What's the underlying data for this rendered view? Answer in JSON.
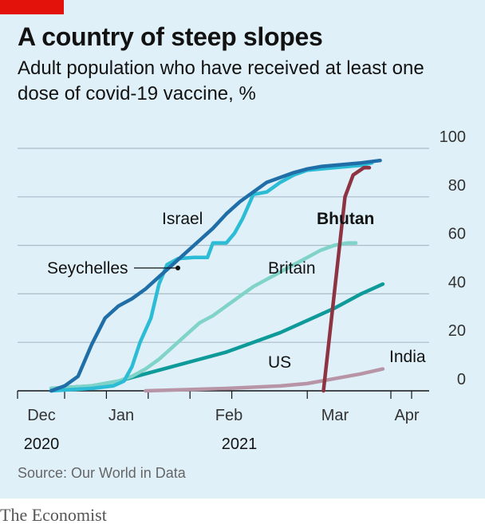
{
  "title": "A country of steep slopes",
  "subtitle": "Adult population who have received at least one dose of covid-19 vaccine, %",
  "source": "Source: Our World in Data",
  "brand": "The Economist",
  "colors": {
    "background": "#dff0f8",
    "israel": "#1f6ea8",
    "seychelles": "#2cbcd6",
    "britain": "#7fd3c8",
    "us": "#0f9a9a",
    "bhutan": "#8e3342",
    "india": "#b895a6",
    "brand_red": "#e3120b"
  },
  "chart_data": {
    "type": "line",
    "x_unit": "days since 2020-12-01",
    "xlabel": "",
    "ylabel": "",
    "ylim": [
      0,
      100
    ],
    "y_ticks": [
      0,
      20,
      40,
      60,
      80,
      100
    ],
    "y_tick_labels": [
      "0",
      "20",
      "40",
      "60",
      "80",
      "100"
    ],
    "grid": true,
    "y_axis_side": "right",
    "x_ticks": [
      {
        "label": "Dec",
        "day": 0
      },
      {
        "label": "Jan",
        "day": 31
      },
      {
        "label": "Feb",
        "day": 62
      },
      {
        "label": "Mar",
        "day": 90
      },
      {
        "label": "Apr",
        "day": 121
      }
    ],
    "year_labels": [
      {
        "label": "2020",
        "day": 0
      },
      {
        "label": "2021",
        "day": 62
      }
    ],
    "series": [
      {
        "name": "Israel",
        "key": "israel",
        "bold": false,
        "label_at": {
          "day": 35,
          "value": 72,
          "anchor": "start"
        },
        "points": [
          [
            -5,
            0
          ],
          [
            0,
            2
          ],
          [
            5,
            6
          ],
          [
            10,
            19
          ],
          [
            15,
            30
          ],
          [
            20,
            35
          ],
          [
            25,
            38
          ],
          [
            30,
            42
          ],
          [
            35,
            47
          ],
          [
            40,
            52
          ],
          [
            45,
            57
          ],
          [
            50,
            62
          ],
          [
            55,
            67
          ],
          [
            60,
            73
          ],
          [
            65,
            78
          ],
          [
            70,
            82
          ],
          [
            75,
            86
          ],
          [
            80,
            88
          ],
          [
            85,
            90
          ],
          [
            90,
            91.5
          ],
          [
            95,
            92.5
          ],
          [
            100,
            93
          ],
          [
            110,
            94
          ],
          [
            117,
            95
          ]
        ]
      },
      {
        "name": "Seychelles",
        "key": "seychelles",
        "bold": false,
        "label_at": {
          "day": -16,
          "value": 51,
          "anchor": "start"
        },
        "pointer": {
          "from_day": 21,
          "from_value": 51,
          "to_day": 27,
          "to_value": 51
        },
        "points": [
          [
            -5,
            0
          ],
          [
            10,
            1
          ],
          [
            18,
            2
          ],
          [
            22,
            4
          ],
          [
            25,
            10
          ],
          [
            28,
            20
          ],
          [
            32,
            30
          ],
          [
            35,
            44
          ],
          [
            38,
            52
          ],
          [
            42,
            54.5
          ],
          [
            48,
            55
          ],
          [
            53,
            55
          ],
          [
            55,
            61
          ],
          [
            60,
            61
          ],
          [
            63,
            65
          ],
          [
            66,
            71
          ],
          [
            70,
            81
          ],
          [
            75,
            82
          ],
          [
            80,
            86
          ],
          [
            85,
            89
          ],
          [
            90,
            91
          ],
          [
            100,
            92
          ],
          [
            110,
            93
          ],
          [
            114,
            94
          ]
        ]
      },
      {
        "name": "Britain",
        "key": "britain",
        "bold": false,
        "label_at": {
          "day": 69,
          "value": 49,
          "anchor": "start"
        },
        "points": [
          [
            -5,
            1
          ],
          [
            10,
            2
          ],
          [
            20,
            4
          ],
          [
            25,
            6
          ],
          [
            30,
            9
          ],
          [
            35,
            13
          ],
          [
            40,
            18
          ],
          [
            45,
            23
          ],
          [
            50,
            28
          ],
          [
            55,
            31
          ],
          [
            60,
            35
          ],
          [
            65,
            39
          ],
          [
            70,
            43
          ],
          [
            75,
            46
          ],
          [
            80,
            49
          ],
          [
            85,
            52
          ],
          [
            90,
            55
          ],
          [
            95,
            58
          ],
          [
            100,
            60
          ],
          [
            105,
            61
          ],
          [
            108,
            61
          ]
        ]
      },
      {
        "name": "US",
        "key": "us",
        "bold": false,
        "label_at": {
          "day": 67,
          "value": 11,
          "anchor": "start"
        },
        "points": [
          [
            -5,
            1
          ],
          [
            10,
            2
          ],
          [
            20,
            4
          ],
          [
            30,
            7
          ],
          [
            40,
            10
          ],
          [
            50,
            13
          ],
          [
            60,
            16
          ],
          [
            70,
            20
          ],
          [
            80,
            24
          ],
          [
            90,
            29
          ],
          [
            100,
            34
          ],
          [
            110,
            40
          ],
          [
            118,
            44
          ]
        ]
      },
      {
        "name": "Bhutan",
        "key": "bhutan",
        "bold": true,
        "label_at": {
          "day": 73,
          "value": 69,
          "anchor": "start"
        },
        "points": [
          [
            96,
            0
          ],
          [
            100,
            40
          ],
          [
            104,
            80
          ],
          [
            107,
            89
          ],
          [
            111,
            92
          ],
          [
            113,
            92
          ]
        ]
      },
      {
        "name": "India",
        "key": "india",
        "bold": false,
        "label_at": {
          "day": 110,
          "value": 13,
          "anchor": "start"
        },
        "points": [
          [
            30,
            0
          ],
          [
            60,
            1
          ],
          [
            80,
            2
          ],
          [
            90,
            3
          ],
          [
            100,
            5
          ],
          [
            110,
            7
          ],
          [
            118,
            9
          ]
        ]
      }
    ]
  }
}
